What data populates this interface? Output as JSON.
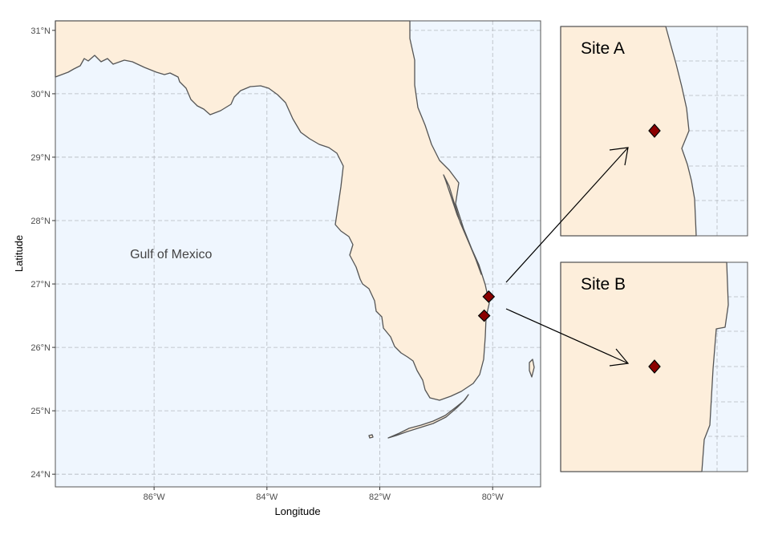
{
  "map": {
    "x_axis_title": "Longitude",
    "y_axis_title": "Latitude",
    "lon_range": [
      -87.75,
      -79.15
    ],
    "lat_range": [
      23.8,
      31.15
    ],
    "lon_ticks": [
      {
        "value": -86,
        "label": "86°W"
      },
      {
        "value": -84,
        "label": "84°W"
      },
      {
        "value": -82,
        "label": "82°W"
      },
      {
        "value": -80,
        "label": "80°W"
      }
    ],
    "lat_ticks": [
      {
        "value": 24,
        "label": "24°N"
      },
      {
        "value": 25,
        "label": "25°N"
      },
      {
        "value": 26,
        "label": "26°N"
      },
      {
        "value": 27,
        "label": "27°N"
      },
      {
        "value": 28,
        "label": "28°N"
      },
      {
        "value": 29,
        "label": "29°N"
      },
      {
        "value": 30,
        "label": "30°N"
      },
      {
        "value": 31,
        "label": "31°N"
      }
    ],
    "grid": true,
    "water_label": {
      "text": "Gulf of Mexico",
      "lon": -85.7,
      "lat": 27.48
    },
    "colors": {
      "land": "#fdeedb",
      "water": "#eff6fe",
      "coastline": "#555555",
      "grid": "#b5b9c0",
      "marker": "#8b0000"
    }
  },
  "sites": [
    {
      "name": "Site A",
      "lon": -80.07,
      "lat": 26.8
    },
    {
      "name": "Site B",
      "lon": -80.15,
      "lat": 26.5
    }
  ],
  "insets": [
    {
      "title": "Site A"
    },
    {
      "title": "Site B"
    }
  ]
}
